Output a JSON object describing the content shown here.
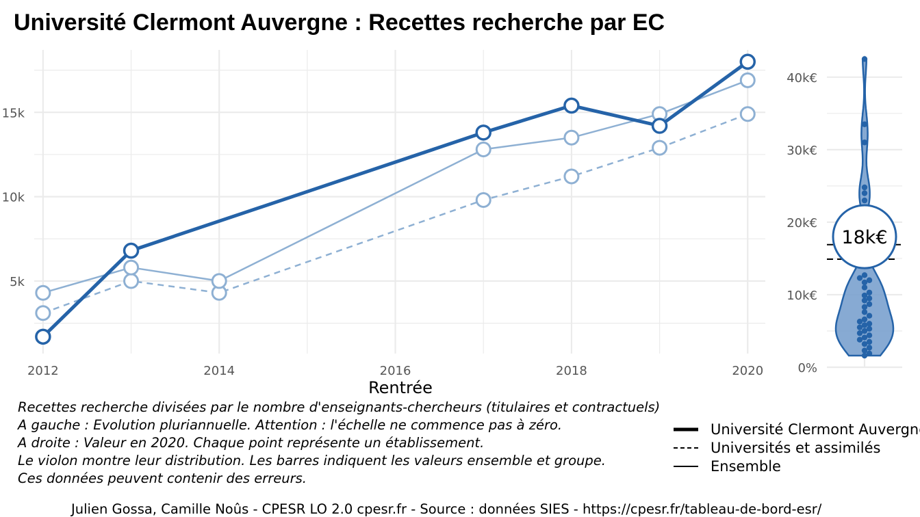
{
  "title": "Université Clermont Auvergne  :  Recettes recherche par EC",
  "colors": {
    "main": "#2563a8",
    "light": "#8eb0d3",
    "grid": "#ebebeb",
    "violin": "#7aa1ce"
  },
  "chart_data": [
    {
      "type": "line",
      "xlabel": "Rentrée",
      "ylabel": "",
      "xlim": [
        2011.9,
        2020.2
      ],
      "ylim": [
        700,
        18700
      ],
      "x_ticks": [
        2012,
        2014,
        2016,
        2018,
        2020
      ],
      "y_ticks": [
        5000,
        10000,
        15000
      ],
      "y_tick_labels": [
        "5k",
        "10k",
        "15k"
      ],
      "grid": true,
      "series": [
        {
          "name": "Université Clermont Auvergne",
          "style": "thick",
          "points": [
            [
              2012,
              1700
            ],
            [
              2013,
              6800
            ],
            [
              2017,
              13800
            ],
            [
              2018,
              15400
            ],
            [
              2019,
              14200
            ],
            [
              2020,
              18000
            ]
          ]
        },
        {
          "name": "Universités et assimilés",
          "style": "dashed",
          "points": [
            [
              2012,
              3100
            ],
            [
              2013,
              5000
            ],
            [
              2014,
              4300
            ],
            [
              2017,
              9800
            ],
            [
              2018,
              11200
            ],
            [
              2019,
              12900
            ],
            [
              2020,
              14900
            ]
          ]
        },
        {
          "name": "Ensemble",
          "style": "thin",
          "points": [
            [
              2012,
              4300
            ],
            [
              2013,
              5800
            ],
            [
              2014,
              5000
            ],
            [
              2017,
              12800
            ],
            [
              2018,
              13500
            ],
            [
              2019,
              14900
            ],
            [
              2020,
              16900
            ]
          ]
        }
      ]
    },
    {
      "type": "violin",
      "year": 2020,
      "ylim": [
        0,
        43000
      ],
      "y_ticks": [
        0,
        10000,
        20000,
        30000,
        40000
      ],
      "y_tick_labels": [
        "0%",
        "10k€",
        "20k€",
        "30k€",
        "40k€"
      ],
      "highlight_value": 18000,
      "highlight_label": "18k€",
      "group_value": 14900,
      "ensemble_value": 16900,
      "points": [
        42500,
        33500,
        31000,
        24800,
        24000,
        23000,
        12700,
        12300,
        12000,
        11700,
        11000,
        10300,
        9900,
        9500,
        9200,
        8700,
        8300,
        7600,
        7100,
        6600,
        6300,
        6000,
        5800,
        5500,
        5300,
        5000,
        4700,
        4400,
        4100,
        3800,
        3500,
        3200,
        2700,
        2300,
        1900,
        1600
      ]
    }
  ],
  "caption": [
    "Recettes recherche divisées par le nombre d'enseignants-chercheurs (titulaires et contractuels)",
    "A gauche : Evolution pluriannuelle. Attention : l'échelle ne commence pas à zéro.",
    "A droite : Valeur en 2020. Chaque point représente un établissement.",
    "Le violon montre leur distribution. Les barres indiquent les valeurs ensemble et groupe.",
    "Ces données peuvent contenir des erreurs."
  ],
  "legend": [
    {
      "label": "Université Clermont Auvergne",
      "style": "thick"
    },
    {
      "label": "Universités et assimilés",
      "style": "dashed"
    },
    {
      "label": "Ensemble",
      "style": "thin"
    }
  ],
  "footer": "Julien Gossa, Camille Noûs - CPESR LO 2.0 cpesr.fr - Source : données SIES - https://cpesr.fr/tableau-de-bord-esr/"
}
